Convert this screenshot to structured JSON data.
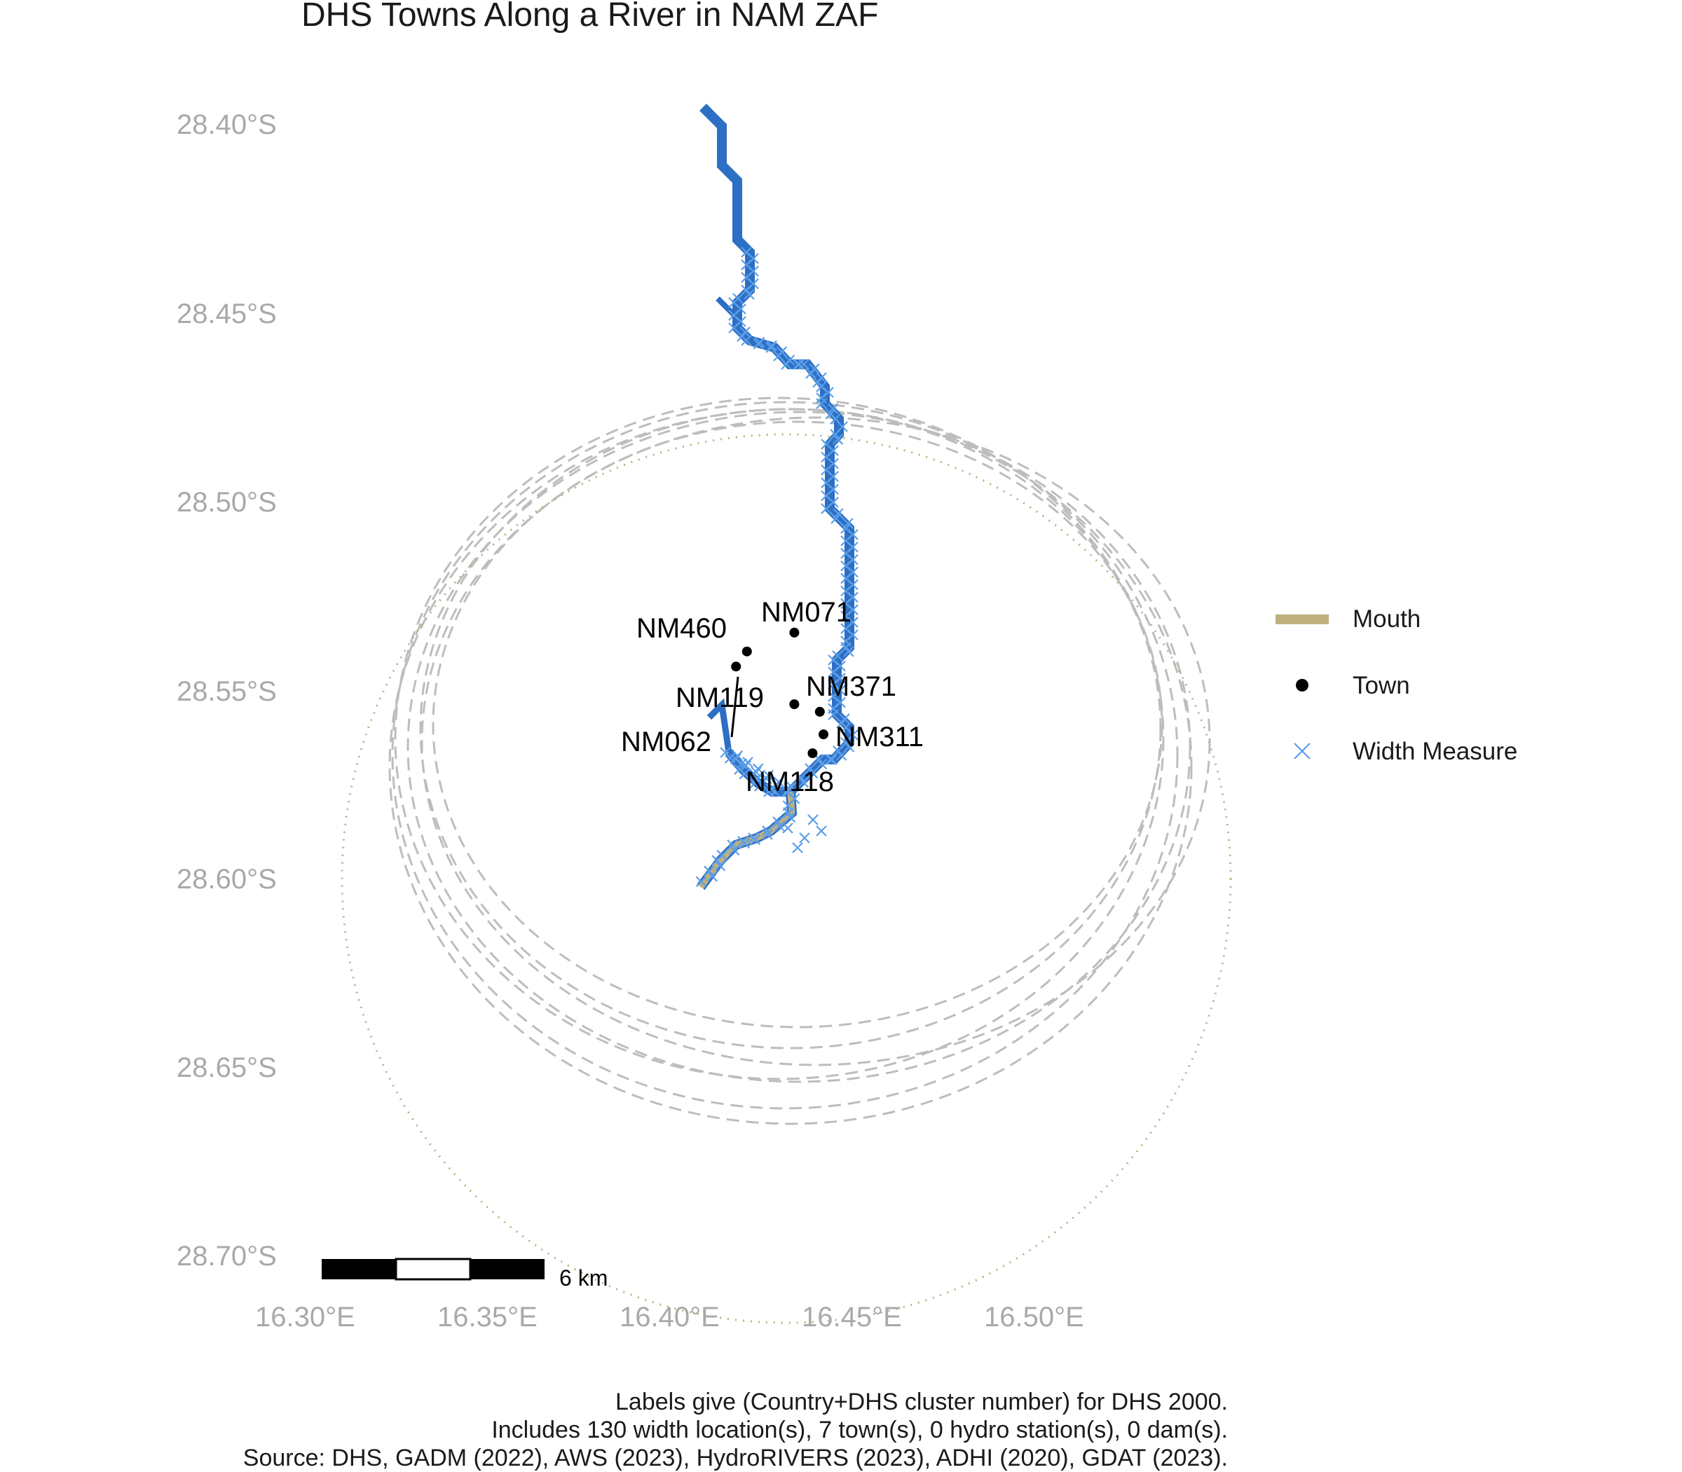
{
  "title": "DHS Towns Along a River in NAM ZAF",
  "axes": {
    "y_ticks": [
      "28.40°S",
      "28.45°S",
      "28.50°S",
      "28.55°S",
      "28.60°S",
      "28.65°S",
      "28.70°S"
    ],
    "x_ticks": [
      "16.30°E",
      "16.35°E",
      "16.40°E",
      "16.45°E",
      "16.50°E"
    ]
  },
  "colors": {
    "river": "#2c6fc4",
    "width_measure": "#5b9ee8",
    "mouth": "#bfb07f",
    "town": "#000000",
    "buffer_circle": "#bdbdbd",
    "axis_text": "#a9a9a9"
  },
  "towns": [
    {
      "id": "NM071",
      "lon": 16.432,
      "lat": -28.534
    },
    {
      "id": "NM460",
      "lon": 16.419,
      "lat": -28.539
    },
    {
      "id": "NM119",
      "lon": 16.432,
      "lat": -28.553
    },
    {
      "id": "NM371",
      "lon": 16.439,
      "lat": -28.555
    },
    {
      "id": "NM062",
      "lon": 16.416,
      "lat": -28.543
    },
    {
      "id": "NM311",
      "lon": 16.44,
      "lat": -28.561
    },
    {
      "id": "NM118",
      "lon": 16.437,
      "lat": -28.566
    }
  ],
  "legend": {
    "items": [
      {
        "label": "Mouth",
        "icon": "line-swatch"
      },
      {
        "label": "Town",
        "icon": "dot"
      },
      {
        "label": "Width Measure",
        "icon": "cross"
      }
    ]
  },
  "scale_bar": {
    "label": "6 km"
  },
  "caption": [
    "Labels give (Country+DHS cluster number) for DHS 2000.",
    "Includes 130 width location(s), 7 town(s), 0 hydro station(s), 0 dam(s).",
    "Source: DHS, GADM (2022), AWS (2023), HydroRIVERS (2023), ADHI (2020), GDAT (2023)."
  ]
}
